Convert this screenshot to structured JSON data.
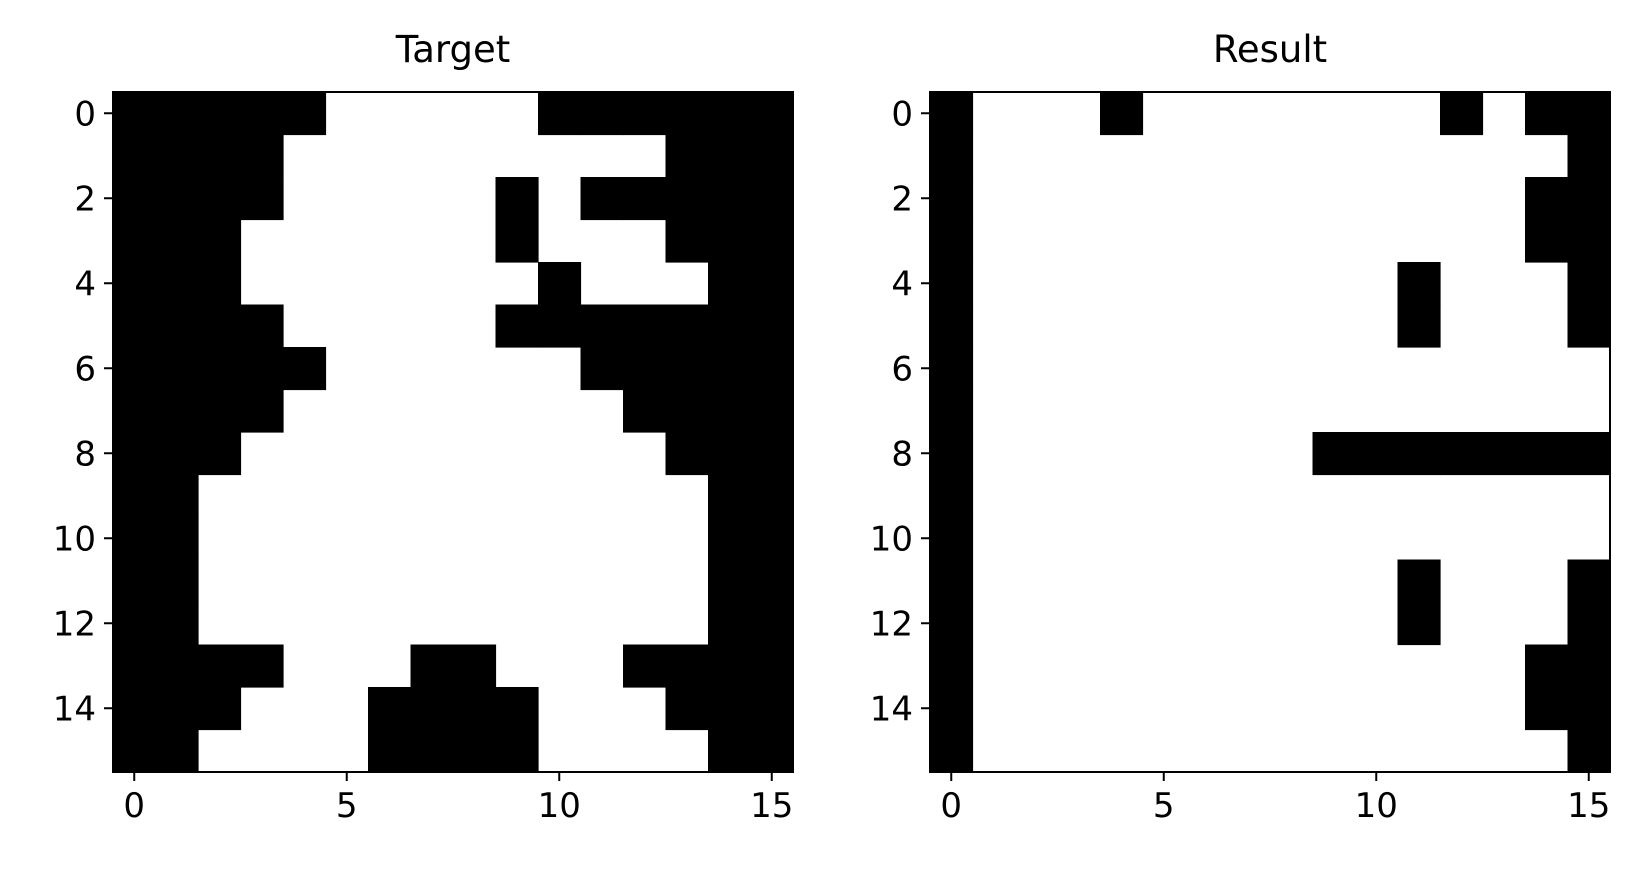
{
  "chart_data": [
    {
      "type": "heatmap",
      "title": "Target",
      "colormap": [
        "#ffffff",
        "#000000"
      ],
      "xticks": [
        0,
        5,
        10,
        15
      ],
      "yticks": [
        0,
        2,
        4,
        6,
        8,
        10,
        12,
        14
      ],
      "xlim": [
        -0.5,
        15.5
      ],
      "ylim": [
        15.5,
        -0.5
      ],
      "grid": [
        [
          1,
          1,
          1,
          1,
          1,
          0,
          0,
          0,
          0,
          0,
          1,
          1,
          1,
          1,
          1,
          1
        ],
        [
          1,
          1,
          1,
          1,
          0,
          0,
          0,
          0,
          0,
          0,
          0,
          0,
          0,
          1,
          1,
          1
        ],
        [
          1,
          1,
          1,
          1,
          0,
          0,
          0,
          0,
          0,
          1,
          0,
          1,
          1,
          1,
          1,
          1
        ],
        [
          1,
          1,
          1,
          0,
          0,
          0,
          0,
          0,
          0,
          1,
          0,
          0,
          0,
          1,
          1,
          1
        ],
        [
          1,
          1,
          1,
          0,
          0,
          0,
          0,
          0,
          0,
          0,
          1,
          0,
          0,
          0,
          1,
          1
        ],
        [
          1,
          1,
          1,
          1,
          0,
          0,
          0,
          0,
          0,
          1,
          1,
          1,
          1,
          1,
          1,
          1
        ],
        [
          1,
          1,
          1,
          1,
          1,
          0,
          0,
          0,
          0,
          0,
          0,
          1,
          1,
          1,
          1,
          1
        ],
        [
          1,
          1,
          1,
          1,
          0,
          0,
          0,
          0,
          0,
          0,
          0,
          0,
          1,
          1,
          1,
          1
        ],
        [
          1,
          1,
          1,
          0,
          0,
          0,
          0,
          0,
          0,
          0,
          0,
          0,
          0,
          1,
          1,
          1
        ],
        [
          1,
          1,
          0,
          0,
          0,
          0,
          0,
          0,
          0,
          0,
          0,
          0,
          0,
          0,
          1,
          1
        ],
        [
          1,
          1,
          0,
          0,
          0,
          0,
          0,
          0,
          0,
          0,
          0,
          0,
          0,
          0,
          1,
          1
        ],
        [
          1,
          1,
          0,
          0,
          0,
          0,
          0,
          0,
          0,
          0,
          0,
          0,
          0,
          0,
          1,
          1
        ],
        [
          1,
          1,
          0,
          0,
          0,
          0,
          0,
          0,
          0,
          0,
          0,
          0,
          0,
          0,
          1,
          1
        ],
        [
          1,
          1,
          1,
          1,
          0,
          0,
          0,
          1,
          1,
          0,
          0,
          0,
          1,
          1,
          1,
          1
        ],
        [
          1,
          1,
          1,
          0,
          0,
          0,
          1,
          1,
          1,
          1,
          0,
          0,
          0,
          1,
          1,
          1
        ],
        [
          1,
          1,
          0,
          0,
          0,
          0,
          1,
          1,
          1,
          1,
          0,
          0,
          0,
          0,
          1,
          1
        ]
      ]
    },
    {
      "type": "heatmap",
      "title": "Result",
      "colormap": [
        "#ffffff",
        "#000000"
      ],
      "xticks": [
        0,
        5,
        10,
        15
      ],
      "yticks": [
        0,
        2,
        4,
        6,
        8,
        10,
        12,
        14
      ],
      "xlim": [
        -0.5,
        15.5
      ],
      "ylim": [
        15.5,
        -0.5
      ],
      "grid": [
        [
          1,
          0,
          0,
          0,
          1,
          0,
          0,
          0,
          0,
          0,
          0,
          0,
          1,
          0,
          1,
          1
        ],
        [
          1,
          0,
          0,
          0,
          0,
          0,
          0,
          0,
          0,
          0,
          0,
          0,
          0,
          0,
          0,
          1
        ],
        [
          1,
          0,
          0,
          0,
          0,
          0,
          0,
          0,
          0,
          0,
          0,
          0,
          0,
          0,
          1,
          1
        ],
        [
          1,
          0,
          0,
          0,
          0,
          0,
          0,
          0,
          0,
          0,
          0,
          0,
          0,
          0,
          1,
          1
        ],
        [
          1,
          0,
          0,
          0,
          0,
          0,
          0,
          0,
          0,
          0,
          0,
          1,
          0,
          0,
          0,
          1
        ],
        [
          1,
          0,
          0,
          0,
          0,
          0,
          0,
          0,
          0,
          0,
          0,
          1,
          0,
          0,
          0,
          1
        ],
        [
          1,
          0,
          0,
          0,
          0,
          0,
          0,
          0,
          0,
          0,
          0,
          0,
          0,
          0,
          0,
          0
        ],
        [
          1,
          0,
          0,
          0,
          0,
          0,
          0,
          0,
          0,
          0,
          0,
          0,
          0,
          0,
          0,
          0
        ],
        [
          1,
          0,
          0,
          0,
          0,
          0,
          0,
          0,
          0,
          1,
          1,
          1,
          1,
          1,
          1,
          1
        ],
        [
          1,
          0,
          0,
          0,
          0,
          0,
          0,
          0,
          0,
          0,
          0,
          0,
          0,
          0,
          0,
          0
        ],
        [
          1,
          0,
          0,
          0,
          0,
          0,
          0,
          0,
          0,
          0,
          0,
          0,
          0,
          0,
          0,
          0
        ],
        [
          1,
          0,
          0,
          0,
          0,
          0,
          0,
          0,
          0,
          0,
          0,
          1,
          0,
          0,
          0,
          1
        ],
        [
          1,
          0,
          0,
          0,
          0,
          0,
          0,
          0,
          0,
          0,
          0,
          1,
          0,
          0,
          0,
          1
        ],
        [
          1,
          0,
          0,
          0,
          0,
          0,
          0,
          0,
          0,
          0,
          0,
          0,
          0,
          0,
          1,
          1
        ],
        [
          1,
          0,
          0,
          0,
          0,
          0,
          0,
          0,
          0,
          0,
          0,
          0,
          0,
          0,
          1,
          1
        ],
        [
          1,
          0,
          0,
          0,
          0,
          0,
          0,
          0,
          0,
          0,
          0,
          0,
          0,
          0,
          0,
          1
        ]
      ]
    }
  ]
}
